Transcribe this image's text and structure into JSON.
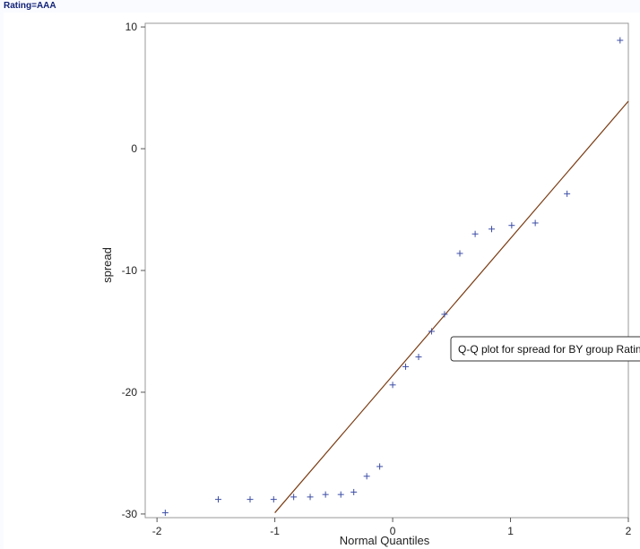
{
  "header": {
    "by_label": "Rating=AAA"
  },
  "tooltip": {
    "text": "Q-Q plot for spread for BY group Rating"
  },
  "colors": {
    "marker": "#3d4ea6",
    "reference_line": "#7a3b12",
    "frame": "#999999"
  },
  "chart_data": {
    "type": "scatter",
    "title": "",
    "xlabel": "Normal Quantiles",
    "ylabel": "spread",
    "xlim": [
      -2.1,
      2.0
    ],
    "ylim": [
      -30.3,
      10.3
    ],
    "xticks": [
      -2,
      -1,
      0,
      1,
      2
    ],
    "yticks": [
      10,
      0,
      -10,
      -20,
      -30
    ],
    "grid": false,
    "marker": "+",
    "series": [
      {
        "x": [
          -1.93,
          -1.48,
          -1.21,
          -1.01,
          -0.84,
          -0.7,
          -0.57,
          -0.44,
          -0.33,
          -0.22,
          -0.11,
          0.0,
          0.11,
          0.22,
          0.33,
          0.44,
          0.57,
          0.7,
          0.84,
          1.01,
          1.21,
          1.48,
          1.93
        ],
        "y": [
          -29.9,
          -28.8,
          -28.8,
          -28.8,
          -28.6,
          -28.6,
          -28.4,
          -28.4,
          -28.2,
          -26.9,
          -26.1,
          -19.4,
          -17.9,
          -17.1,
          -15.0,
          -13.6,
          -8.6,
          -7.0,
          -6.6,
          -6.3,
          -6.1,
          -3.7,
          8.9
        ]
      }
    ],
    "reference_line": {
      "x": [
        -1.0,
        2.0
      ],
      "y": [
        -29.9,
        3.9
      ]
    }
  }
}
